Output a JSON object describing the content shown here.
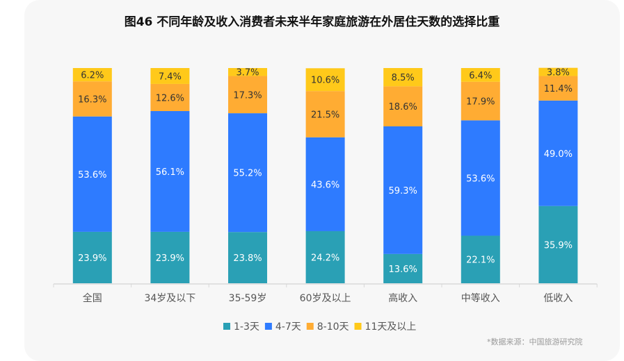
{
  "chart_data": {
    "type": "bar",
    "stacked": true,
    "title": "图46 不同年龄及收入消费者未来半年家庭旅游在外居住天数的选择比重",
    "categories": [
      "全国",
      "34岁及以下",
      "35-59岁",
      "60岁及以上",
      "高收入",
      "中等收入",
      "低收入"
    ],
    "series": [
      {
        "name": "1-3天",
        "color": "#2aa0b5",
        "values": [
          23.9,
          23.9,
          23.8,
          24.2,
          13.6,
          22.1,
          35.9
        ]
      },
      {
        "name": "4-7天",
        "color": "#2e7bff",
        "values": [
          53.6,
          56.1,
          55.2,
          43.6,
          59.3,
          53.6,
          49.0
        ]
      },
      {
        "name": "8-10天",
        "color": "#ffac33",
        "values": [
          16.3,
          12.6,
          17.3,
          21.5,
          18.6,
          17.9,
          11.4
        ]
      },
      {
        "name": "11天及以上",
        "color": "#ffc91a",
        "values": [
          6.2,
          7.4,
          3.7,
          10.6,
          8.5,
          6.4,
          3.8
        ]
      }
    ],
    "ylim": [
      0,
      100
    ],
    "legend": "bottom",
    "source": "*数据来源：中国旅游研究院"
  }
}
